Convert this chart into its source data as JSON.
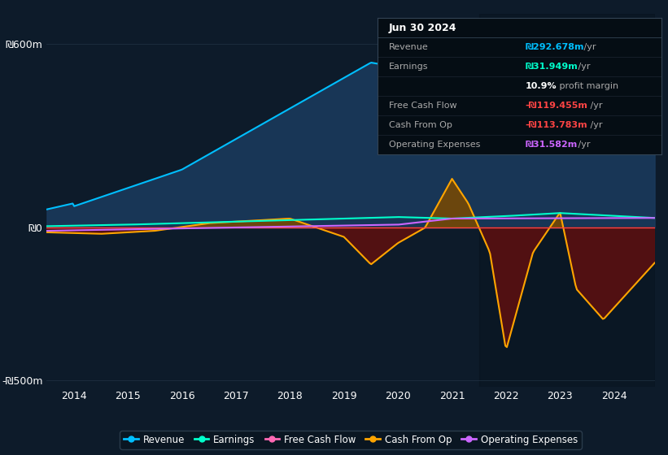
{
  "background_color": "#0d1b2a",
  "plot_bg_color": "#0d1b2a",
  "title": "Jun 30 2024",
  "ylabel_600": "₪600m",
  "ylabel_0": "₪0",
  "ylabel_neg500": "-₪500m",
  "x_ticks": [
    2014,
    2015,
    2016,
    2017,
    2018,
    2019,
    2020,
    2021,
    2022,
    2023,
    2024
  ],
  "legend": [
    "Revenue",
    "Earnings",
    "Free Cash Flow",
    "Cash From Op",
    "Operating Expenses"
  ],
  "legend_colors": [
    "#00bfff",
    "#00ffcc",
    "#ff69b4",
    "#ffa500",
    "#cc66ff"
  ],
  "revenue_color": "#00bfff",
  "earnings_color": "#00ffcc",
  "fcf_color": "#ff4444",
  "cashop_color": "#ffa500",
  "opex_color": "#cc66ff",
  "info_box": {
    "title": "Jun 30 2024",
    "rows": [
      {
        "label": "Revenue",
        "value": "₪292.678m",
        "suffix": " /yr",
        "value_color": "#00bfff"
      },
      {
        "label": "Earnings",
        "value": "₪31.949m",
        "suffix": " /yr",
        "value_color": "#00ffcc"
      },
      {
        "label": "",
        "value": "10.9%",
        "suffix": " profit margin",
        "value_color": "white"
      },
      {
        "label": "Free Cash Flow",
        "value": "-₪119.455m",
        "suffix": " /yr",
        "value_color": "#ff4444"
      },
      {
        "label": "Cash From Op",
        "value": "-₪113.783m",
        "suffix": " /yr",
        "value_color": "#ff4444"
      },
      {
        "label": "Operating Expenses",
        "value": "₪31.582m",
        "suffix": " /yr",
        "value_color": "#cc66ff"
      }
    ]
  }
}
